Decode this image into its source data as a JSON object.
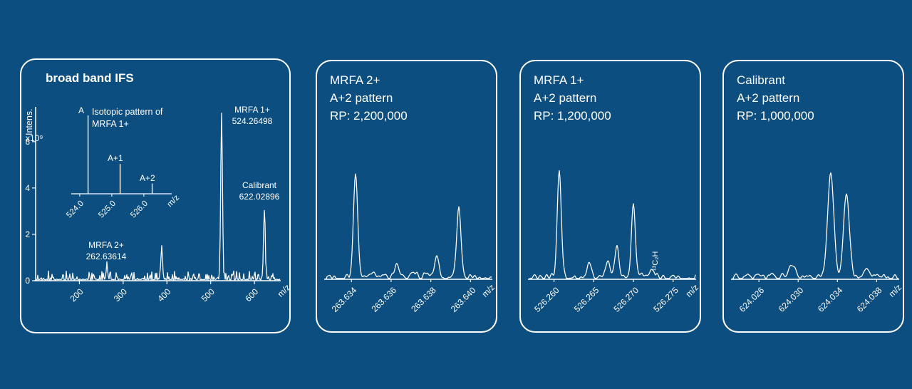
{
  "colors": {
    "background": "#0d4e80",
    "foreground": "#ffffff"
  },
  "chart_data": [
    {
      "type": "line",
      "title": "broad band IFS",
      "ylabel": "Intens.",
      "ylabel_multiplier": "x10⁹",
      "xlabel": "m/z",
      "xlim": [
        100,
        660
      ],
      "ylim": [
        0,
        7.5
      ],
      "yticks": [
        0,
        2,
        4,
        6
      ],
      "xticks": [
        {
          "value": 200,
          "label": "200"
        },
        {
          "value": 300,
          "label": "300"
        },
        {
          "value": 400,
          "label": "400"
        },
        {
          "value": 500,
          "label": "500"
        },
        {
          "value": 600,
          "label": "600"
        }
      ],
      "peaks": [
        {
          "mz": 262.63614,
          "intensity": 0.55,
          "label": "MRFA 2+",
          "label_value": "262.63614"
        },
        {
          "mz": 388.0,
          "intensity": 1.3
        },
        {
          "mz": 524.26498,
          "intensity": 7.2,
          "label": "MRFA 1+",
          "label_value": "524.26498"
        },
        {
          "mz": 622.02896,
          "intensity": 3.0,
          "label": "Calibrant",
          "label_value": "622.02896"
        }
      ],
      "inset": {
        "annotation_lines": [
          "Isotopic pattern of",
          "MRFA 1+"
        ],
        "xlabel": "m/z",
        "xlim": [
          523.78,
          526.78
        ],
        "xticks": [
          {
            "value": 524.0,
            "label": "524.0"
          },
          {
            "value": 525.0,
            "label": "525.0"
          },
          {
            "value": 526.0,
            "label": "526.0"
          }
        ],
        "peaks": [
          {
            "label": "A",
            "mz": 524.26,
            "rel_intensity": 1.0
          },
          {
            "label": "A+1",
            "mz": 525.26,
            "rel_intensity": 0.38
          },
          {
            "label": "A+2",
            "mz": 526.26,
            "rel_intensity": 0.13
          }
        ]
      }
    },
    {
      "type": "line",
      "title_lines": [
        "MRFA 2+",
        "A+2 pattern",
        "RP: 2,200,000"
      ],
      "xlabel": "m/z",
      "xlim": [
        263.6327,
        263.6411
      ],
      "xticks": [
        {
          "value": 263.634,
          "label": "263.634"
        },
        {
          "value": 263.636,
          "label": "263.636"
        },
        {
          "value": 263.638,
          "label": "263.638"
        },
        {
          "value": 263.64,
          "label": "263.640"
        }
      ],
      "peaks": [
        {
          "mz": 263.6342,
          "rel_intensity": 1.0
        },
        {
          "mz": 263.6351,
          "rel_intensity": 0.06
        },
        {
          "mz": 263.6363,
          "rel_intensity": 0.13
        },
        {
          "mz": 263.6371,
          "rel_intensity": 0.06
        },
        {
          "mz": 263.6383,
          "rel_intensity": 0.22
        },
        {
          "mz": 263.6394,
          "rel_intensity": 0.64
        }
      ]
    },
    {
      "type": "line",
      "title_lines": [
        "MRFA 1+",
        "A+2 pattern",
        "RP: 1,200,000"
      ],
      "xlabel": "m/z",
      "xlim": [
        526.2569,
        526.2779
      ],
      "xticks": [
        {
          "value": 526.26,
          "label": "526.260"
        },
        {
          "value": 526.265,
          "label": "526.265"
        },
        {
          "value": 526.27,
          "label": "526.270"
        },
        {
          "value": 526.275,
          "label": "526.275"
        }
      ],
      "peaks": [
        {
          "mz": 526.2607,
          "rel_intensity": 1.0
        },
        {
          "mz": 526.2644,
          "rel_intensity": 0.15
        },
        {
          "mz": 526.2668,
          "rel_intensity": 0.14
        },
        {
          "mz": 526.2679,
          "rel_intensity": 0.28
        },
        {
          "mz": 526.27,
          "rel_intensity": 0.68
        },
        {
          "mz": 526.2724,
          "rel_intensity": 0.08,
          "annotation": "¹³C₂H"
        }
      ]
    },
    {
      "type": "line",
      "title_lines": [
        "Calibrant",
        "A+2 pattern",
        "RP: 1,000,000"
      ],
      "xlabel": "m/z",
      "xlim": [
        624.0233,
        624.0403
      ],
      "xticks": [
        {
          "value": 624.026,
          "label": "624.026"
        },
        {
          "value": 624.03,
          "label": "624.030"
        },
        {
          "value": 624.034,
          "label": "624.034"
        },
        {
          "value": 624.038,
          "label": "624.038"
        }
      ],
      "peaks": [
        {
          "mz": 624.0294,
          "rel_intensity": 0.12
        },
        {
          "mz": 624.0333,
          "rel_intensity": 1.0
        },
        {
          "mz": 624.0349,
          "rel_intensity": 0.77
        },
        {
          "mz": 624.0371,
          "rel_intensity": 0.06
        }
      ]
    }
  ]
}
